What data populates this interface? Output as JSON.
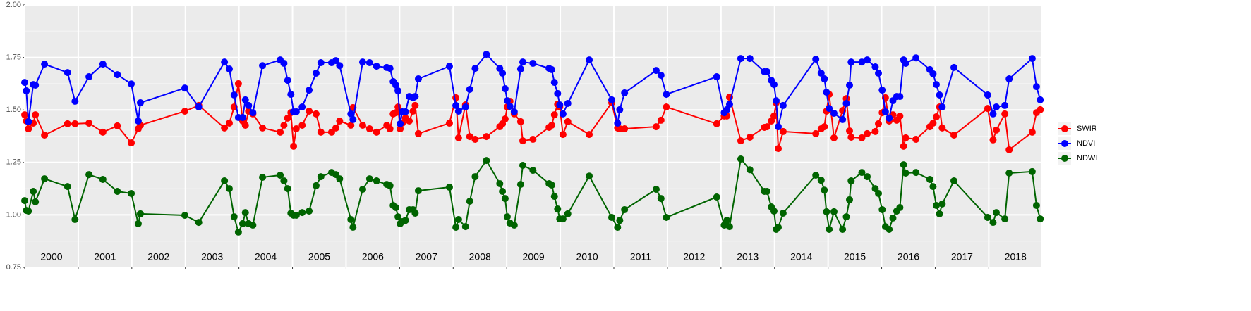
{
  "chart_data": {
    "type": "line",
    "x": [
      2000.0,
      2000.03,
      2000.07,
      2000.16,
      2000.2,
      2000.37,
      2000.8,
      2000.94,
      2001.2,
      2001.46,
      2001.73,
      2001.99,
      2002.12,
      2002.16,
      2002.99,
      2003.25,
      2003.73,
      2003.82,
      2003.91,
      2003.99,
      2004.07,
      2004.12,
      2004.18,
      2004.26,
      2004.44,
      2004.77,
      2004.84,
      2004.91,
      2004.97,
      2005.02,
      2005.07,
      2005.18,
      2005.31,
      2005.44,
      2005.53,
      2005.73,
      2005.81,
      2005.88,
      2006.09,
      2006.13,
      2006.31,
      2006.44,
      2006.57,
      2006.76,
      2006.82,
      2006.88,
      2006.93,
      2006.97,
      2007.01,
      2007.05,
      2007.11,
      2007.18,
      2007.25,
      2007.29,
      2007.35,
      2007.93,
      2008.05,
      2008.1,
      2008.23,
      2008.31,
      2008.41,
      2008.62,
      2008.87,
      2008.92,
      2008.97,
      2009.01,
      2009.06,
      2009.14,
      2009.26,
      2009.3,
      2009.49,
      2009.79,
      2009.84,
      2009.89,
      2009.95,
      2009.99,
      2010.05,
      2010.14,
      2010.54,
      2010.96,
      2011.07,
      2011.11,
      2011.2,
      2011.79,
      2011.88,
      2011.98,
      2012.92,
      2013.06,
      2013.11,
      2013.16,
      2013.37,
      2013.54,
      2013.81,
      2013.86,
      2013.94,
      2013.99,
      2014.03,
      2014.07,
      2014.16,
      2014.77,
      2014.87,
      2014.93,
      2014.97,
      2015.02,
      2015.11,
      2015.27,
      2015.34,
      2015.4,
      2015.43,
      2015.63,
      2015.73,
      2015.88,
      2015.94,
      2016.01,
      2016.07,
      2016.14,
      2016.21,
      2016.28,
      2016.34,
      2016.41,
      2016.45,
      2016.64,
      2016.9,
      2016.96,
      2017.02,
      2017.08,
      2017.13,
      2017.35,
      2017.98,
      2018.08,
      2018.14,
      2018.3,
      2018.38,
      2018.81,
      2018.89,
      2018.96
    ],
    "series": [
      {
        "name": "SWIR",
        "color": "#ff0000",
        "values": [
          1.477,
          1.447,
          1.41,
          1.437,
          1.477,
          1.38,
          1.434,
          1.434,
          1.437,
          1.394,
          1.424,
          1.343,
          1.41,
          1.427,
          1.494,
          1.521,
          1.414,
          1.437,
          1.514,
          1.625,
          1.447,
          1.427,
          1.494,
          1.481,
          1.414,
          1.394,
          1.427,
          1.461,
          1.487,
          1.327,
          1.41,
          1.427,
          1.494,
          1.481,
          1.394,
          1.394,
          1.414,
          1.447,
          1.427,
          1.511,
          1.427,
          1.41,
          1.394,
          1.427,
          1.41,
          1.481,
          1.487,
          1.514,
          1.41,
          1.437,
          1.461,
          1.447,
          1.494,
          1.521,
          1.387,
          1.437,
          1.558,
          1.367,
          1.524,
          1.373,
          1.36,
          1.373,
          1.42,
          1.434,
          1.457,
          1.514,
          1.541,
          1.481,
          1.444,
          1.353,
          1.36,
          1.417,
          1.427,
          1.477,
          1.527,
          1.514,
          1.383,
          1.444,
          1.383,
          1.534,
          1.414,
          1.41,
          1.41,
          1.42,
          1.451,
          1.514,
          1.434,
          1.471,
          1.471,
          1.561,
          1.353,
          1.37,
          1.417,
          1.42,
          1.447,
          1.471,
          1.534,
          1.316,
          1.397,
          1.387,
          1.41,
          1.42,
          1.494,
          1.574,
          1.367,
          1.497,
          1.554,
          1.4,
          1.37,
          1.367,
          1.387,
          1.397,
          1.434,
          1.487,
          1.558,
          1.447,
          1.477,
          1.451,
          1.471,
          1.327,
          1.367,
          1.36,
          1.42,
          1.437,
          1.467,
          1.514,
          1.414,
          1.38,
          1.507,
          1.357,
          1.404,
          1.481,
          1.31,
          1.394,
          1.487,
          1.501
        ]
      },
      {
        "name": "NDVI",
        "color": "#0000ff",
        "values": [
          1.631,
          1.591,
          1.444,
          1.621,
          1.618,
          1.718,
          1.678,
          1.541,
          1.658,
          1.718,
          1.668,
          1.624,
          1.447,
          1.534,
          1.604,
          1.514,
          1.728,
          1.695,
          1.571,
          1.464,
          1.464,
          1.548,
          1.521,
          1.487,
          1.711,
          1.738,
          1.722,
          1.641,
          1.574,
          1.491,
          1.491,
          1.514,
          1.594,
          1.675,
          1.725,
          1.725,
          1.735,
          1.711,
          1.481,
          1.454,
          1.728,
          1.725,
          1.708,
          1.702,
          1.698,
          1.635,
          1.618,
          1.591,
          1.434,
          1.491,
          1.491,
          1.564,
          1.558,
          1.564,
          1.648,
          1.708,
          1.521,
          1.494,
          1.514,
          1.598,
          1.698,
          1.765,
          1.698,
          1.675,
          1.601,
          1.544,
          1.517,
          1.491,
          1.695,
          1.728,
          1.722,
          1.698,
          1.692,
          1.631,
          1.578,
          1.524,
          1.481,
          1.531,
          1.738,
          1.548,
          1.437,
          1.501,
          1.581,
          1.688,
          1.665,
          1.574,
          1.658,
          1.487,
          1.501,
          1.527,
          1.745,
          1.745,
          1.682,
          1.682,
          1.641,
          1.621,
          1.544,
          1.42,
          1.521,
          1.742,
          1.675,
          1.648,
          1.584,
          1.507,
          1.484,
          1.454,
          1.531,
          1.618,
          1.728,
          1.728,
          1.738,
          1.705,
          1.675,
          1.594,
          1.491,
          1.461,
          1.544,
          1.564,
          1.564,
          1.738,
          1.722,
          1.748,
          1.692,
          1.672,
          1.621,
          1.571,
          1.514,
          1.702,
          1.571,
          1.481,
          1.514,
          1.521,
          1.648,
          1.745,
          1.611,
          1.548
        ]
      },
      {
        "name": "NDWI",
        "color": "#006400",
        "values": [
          1.068,
          1.021,
          1.018,
          1.112,
          1.062,
          1.172,
          1.135,
          0.978,
          1.192,
          1.169,
          1.112,
          1.102,
          0.958,
          1.005,
          0.998,
          0.964,
          1.162,
          1.125,
          0.991,
          0.918,
          0.958,
          1.011,
          0.958,
          0.951,
          1.179,
          1.189,
          1.162,
          1.125,
          1.008,
          0.998,
          0.998,
          1.011,
          1.018,
          1.139,
          1.182,
          1.202,
          1.192,
          1.172,
          0.978,
          0.941,
          1.122,
          1.172,
          1.162,
          1.145,
          1.139,
          1.045,
          1.035,
          0.991,
          0.958,
          0.968,
          0.974,
          1.025,
          1.025,
          1.008,
          1.115,
          1.132,
          0.941,
          0.978,
          0.944,
          1.065,
          1.182,
          1.259,
          1.149,
          1.112,
          1.078,
          0.991,
          0.961,
          0.951,
          1.145,
          1.236,
          1.212,
          1.149,
          1.142,
          1.088,
          1.028,
          0.981,
          0.981,
          1.005,
          1.185,
          0.988,
          0.941,
          0.974,
          1.025,
          1.122,
          1.078,
          0.988,
          1.085,
          0.951,
          0.974,
          0.944,
          1.266,
          1.215,
          1.112,
          1.112,
          1.038,
          1.018,
          0.931,
          0.941,
          1.008,
          1.189,
          1.165,
          1.118,
          1.015,
          0.931,
          1.015,
          0.931,
          0.991,
          1.072,
          1.162,
          1.202,
          1.182,
          1.125,
          1.102,
          1.025,
          0.944,
          0.931,
          0.985,
          1.018,
          1.035,
          1.239,
          1.199,
          1.202,
          1.169,
          1.135,
          1.045,
          1.005,
          1.052,
          1.162,
          0.988,
          0.964,
          1.011,
          0.981,
          1.199,
          1.206,
          1.045,
          0.981
        ]
      }
    ],
    "xlim": [
      2000,
      2018.97
    ],
    "xticks": [
      {
        "value": 2000,
        "label": "2000"
      },
      {
        "value": 2001,
        "label": "2001"
      },
      {
        "value": 2002,
        "label": "2002"
      },
      {
        "value": 2003,
        "label": "2003"
      },
      {
        "value": 2004,
        "label": "2004"
      },
      {
        "value": 2005,
        "label": "2005"
      },
      {
        "value": 2006,
        "label": "2006"
      },
      {
        "value": 2007,
        "label": "2007"
      },
      {
        "value": 2008,
        "label": "2008"
      },
      {
        "value": 2009,
        "label": "2009"
      },
      {
        "value": 2010,
        "label": "2010"
      },
      {
        "value": 2011,
        "label": "2011"
      },
      {
        "value": 2012,
        "label": "2012"
      },
      {
        "value": 2013,
        "label": "2013"
      },
      {
        "value": 2014,
        "label": "2014"
      },
      {
        "value": 2015,
        "label": "2015"
      },
      {
        "value": 2016,
        "label": "2016"
      },
      {
        "value": 2017,
        "label": "2017"
      },
      {
        "value": 2018,
        "label": "2018"
      }
    ],
    "ylim": [
      0.75,
      2.0
    ],
    "yticks": [
      {
        "value": 0.75,
        "label": "0.75"
      },
      {
        "value": 1.0,
        "label": "1.00"
      },
      {
        "value": 1.25,
        "label": "1.25"
      },
      {
        "value": 1.5,
        "label": "1.50"
      },
      {
        "value": 1.75,
        "label": "1.75"
      },
      {
        "value": 2.0,
        "label": "2.00"
      }
    ],
    "grid": true,
    "legend": "right"
  }
}
